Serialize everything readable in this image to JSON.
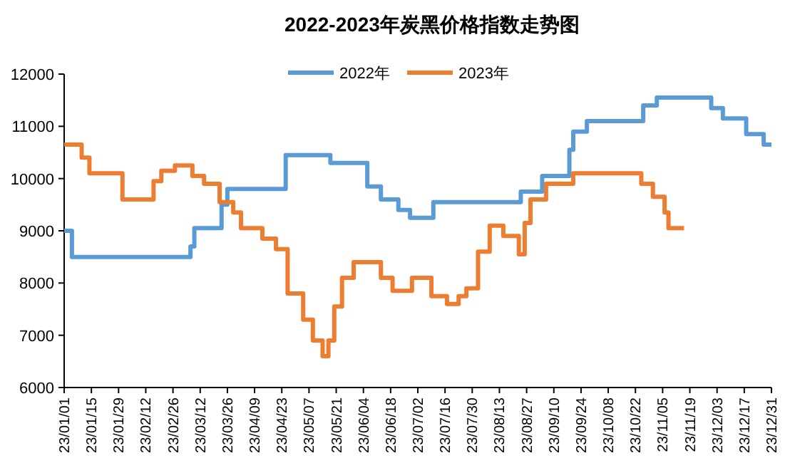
{
  "chart_data": {
    "type": "step",
    "title": "2022-2023年炭黑价格指数走势图",
    "legend": "top",
    "grid": false,
    "line_style": "solid",
    "xlim": [
      "2023-01-01",
      "2023-12-31"
    ],
    "xticks": [
      {
        "value": "2023-01-01",
        "label": "23/01/01"
      },
      {
        "value": "2023-01-15",
        "label": "23/01/15"
      },
      {
        "value": "2023-01-29",
        "label": "23/01/29"
      },
      {
        "value": "2023-02-12",
        "label": "23/02/12"
      },
      {
        "value": "2023-02-26",
        "label": "23/02/26"
      },
      {
        "value": "2023-03-12",
        "label": "23/03/12"
      },
      {
        "value": "2023-03-26",
        "label": "23/03/26"
      },
      {
        "value": "2023-04-09",
        "label": "23/04/09"
      },
      {
        "value": "2023-04-23",
        "label": "23/04/23"
      },
      {
        "value": "2023-05-07",
        "label": "23/05/07"
      },
      {
        "value": "2023-05-21",
        "label": "23/05/21"
      },
      {
        "value": "2023-06-04",
        "label": "23/06/04"
      },
      {
        "value": "2023-06-18",
        "label": "23/06/18"
      },
      {
        "value": "2023-07-02",
        "label": "23/07/02"
      },
      {
        "value": "2023-07-16",
        "label": "23/07/16"
      },
      {
        "value": "2023-07-30",
        "label": "23/07/30"
      },
      {
        "value": "2023-08-13",
        "label": "23/08/13"
      },
      {
        "value": "2023-08-27",
        "label": "23/08/27"
      },
      {
        "value": "2023-09-10",
        "label": "23/09/10"
      },
      {
        "value": "2023-09-24",
        "label": "23/09/24"
      },
      {
        "value": "2023-10-08",
        "label": "23/10/08"
      },
      {
        "value": "2023-10-22",
        "label": "23/10/22"
      },
      {
        "value": "2023-11-05",
        "label": "23/11/05"
      },
      {
        "value": "2023-11-19",
        "label": "23/11/19"
      },
      {
        "value": "2023-12-03",
        "label": "23/12/03"
      },
      {
        "value": "2023-12-17",
        "label": "23/12/17"
      },
      {
        "value": "2023-12-31",
        "label": "23/12/31"
      }
    ],
    "ylim": [
      6000,
      12000
    ],
    "yticks": [
      6000,
      7000,
      8000,
      9000,
      10000,
      11000,
      12000
    ],
    "series": [
      {
        "name": "2022年",
        "color": "#5b9bd5",
        "x": [
          "2023-01-01",
          "2023-01-05",
          "2023-03-07",
          "2023-03-09",
          "2023-03-23",
          "2023-03-26",
          "2023-04-25",
          "2023-05-18",
          "2023-06-06",
          "2023-06-13",
          "2023-06-22",
          "2023-06-28",
          "2023-07-10",
          "2023-08-24",
          "2023-09-04",
          "2023-09-18",
          "2023-09-20",
          "2023-09-27",
          "2023-10-26",
          "2023-11-02",
          "2023-11-30",
          "2023-12-06",
          "2023-12-18",
          "2023-12-27",
          "2023-12-31"
        ],
        "values": [
          9000,
          8500,
          8700,
          9050,
          9500,
          9800,
          10450,
          10300,
          9850,
          9600,
          9400,
          9250,
          9550,
          9750,
          10050,
          10550,
          10900,
          11100,
          11400,
          11550,
          11350,
          11150,
          10850,
          10650,
          10650
        ]
      },
      {
        "name": "2023年",
        "color": "#ed7d31",
        "x": [
          "2023-01-01",
          "2023-01-10",
          "2023-01-14",
          "2023-01-31",
          "2023-02-16",
          "2023-02-20",
          "2023-02-27",
          "2023-03-08",
          "2023-03-14",
          "2023-03-22",
          "2023-03-29",
          "2023-04-02",
          "2023-04-13",
          "2023-04-20",
          "2023-04-26",
          "2023-05-04",
          "2023-05-09",
          "2023-05-14",
          "2023-05-17",
          "2023-05-20",
          "2023-05-24",
          "2023-05-30",
          "2023-06-13",
          "2023-06-19",
          "2023-06-29",
          "2023-07-09",
          "2023-07-17",
          "2023-07-23",
          "2023-07-27",
          "2023-08-02",
          "2023-08-08",
          "2023-08-15",
          "2023-08-23",
          "2023-08-26",
          "2023-08-29",
          "2023-09-06",
          "2023-09-20",
          "2023-10-25",
          "2023-10-31",
          "2023-11-06",
          "2023-11-08",
          "2023-11-16"
        ],
        "values": [
          10650,
          10400,
          10100,
          9600,
          9950,
          10150,
          10250,
          10050,
          9900,
          9550,
          9350,
          9050,
          8850,
          8650,
          7800,
          7300,
          6900,
          6600,
          6900,
          7550,
          8100,
          8400,
          8100,
          7850,
          8100,
          7750,
          7600,
          7750,
          7900,
          8600,
          9100,
          8900,
          8550,
          9150,
          9600,
          9900,
          10100,
          9900,
          9650,
          9350,
          9050,
          9050
        ]
      }
    ]
  }
}
